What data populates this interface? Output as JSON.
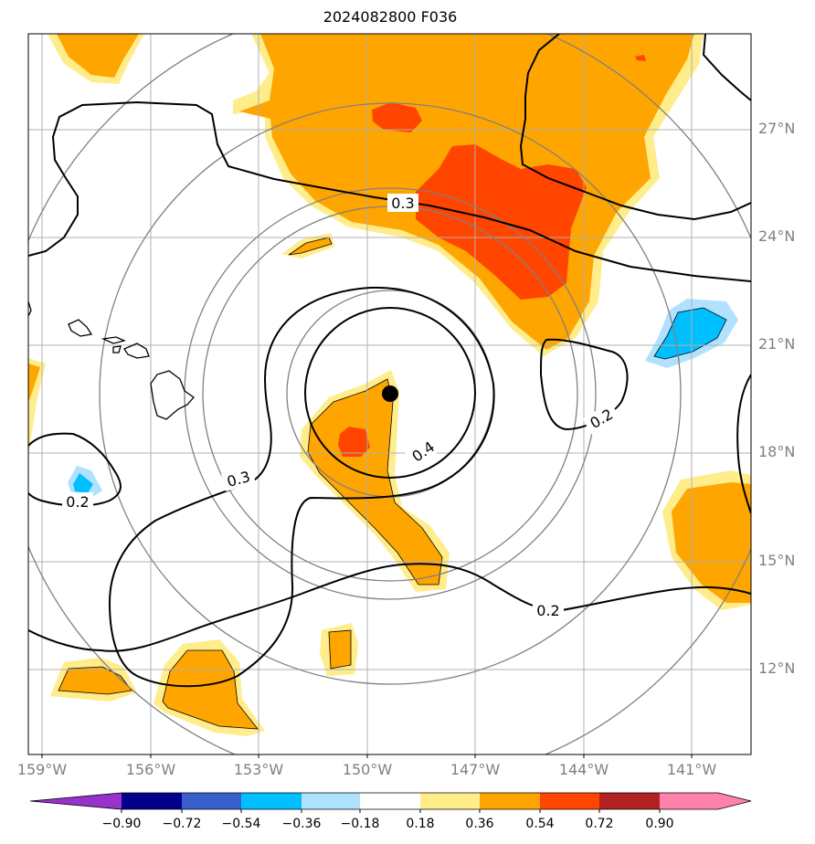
{
  "title": "2024082800 F036",
  "map": {
    "lat_labels": [
      "27°N",
      "24°N",
      "21°N",
      "18°N",
      "15°N",
      "12°N"
    ],
    "lon_labels": [
      "159°W",
      "156°W",
      "153°W",
      "150°W",
      "147°W",
      "144°W",
      "141°W"
    ],
    "contour_labels": [
      "0.3",
      "0.2",
      "0.3",
      "0.4",
      "0.2",
      "0.2"
    ],
    "center_marker": "storm-center"
  },
  "colorbar": {
    "ticks": [
      "−0.90",
      "−0.72",
      "−0.54",
      "−0.36",
      "−0.18",
      "0.18",
      "0.36",
      "0.54",
      "0.72",
      "0.90"
    ],
    "colors": [
      "#9932cc",
      "#00008b",
      "#3a5fcd",
      "#00bfff",
      "#b0e2ff",
      "#ffffff",
      "#ffec8b",
      "#ffa500",
      "#ff4500",
      "#b22222",
      "#ff82ab"
    ]
  }
}
